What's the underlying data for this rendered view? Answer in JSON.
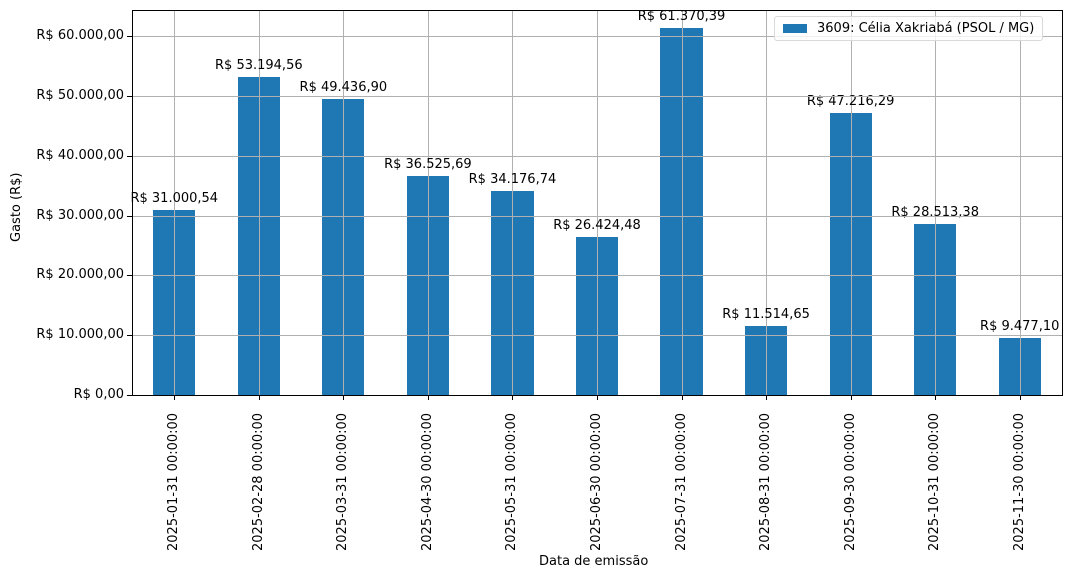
{
  "chart_data": {
    "type": "bar",
    "title": "",
    "xlabel": "Data de emissão",
    "ylabel": "Gasto (R$)",
    "ylim": [
      0,
      64350
    ],
    "grid": true,
    "legend_position": "upper right",
    "color": "#1f77b4",
    "categories": [
      "2025-01-31 00:00:00",
      "2025-02-28 00:00:00",
      "2025-03-31 00:00:00",
      "2025-04-30 00:00:00",
      "2025-05-31 00:00:00",
      "2025-06-30 00:00:00",
      "2025-07-31 00:00:00",
      "2025-08-31 00:00:00",
      "2025-09-30 00:00:00",
      "2025-10-31 00:00:00",
      "2025-11-30 00:00:00"
    ],
    "series": [
      {
        "name": "3609: Célia Xakriabá (PSOL / MG)",
        "values": [
          31000.54,
          53194.56,
          49436.9,
          36525.69,
          34176.74,
          26424.48,
          61370.39,
          11514.65,
          47216.29,
          28513.38,
          9477.1
        ],
        "labels": [
          "R$ 31.000,54",
          "R$ 53.194,56",
          "R$ 49.436,90",
          "R$ 36.525,69",
          "R$ 34.176,74",
          "R$ 26.424,48",
          "R$ 61.370,39",
          "R$ 11.514,65",
          "R$ 47.216,29",
          "R$ 28.513,38",
          "R$ 9.477,10"
        ]
      }
    ],
    "yticks": [
      0,
      10000,
      20000,
      30000,
      40000,
      50000,
      60000
    ],
    "ytick_labels": [
      "R$ 0,00",
      "R$ 10.000,00",
      "R$ 20.000,00",
      "R$ 30.000,00",
      "R$ 40.000,00",
      "R$ 50.000,00",
      "R$ 60.000,00"
    ]
  }
}
